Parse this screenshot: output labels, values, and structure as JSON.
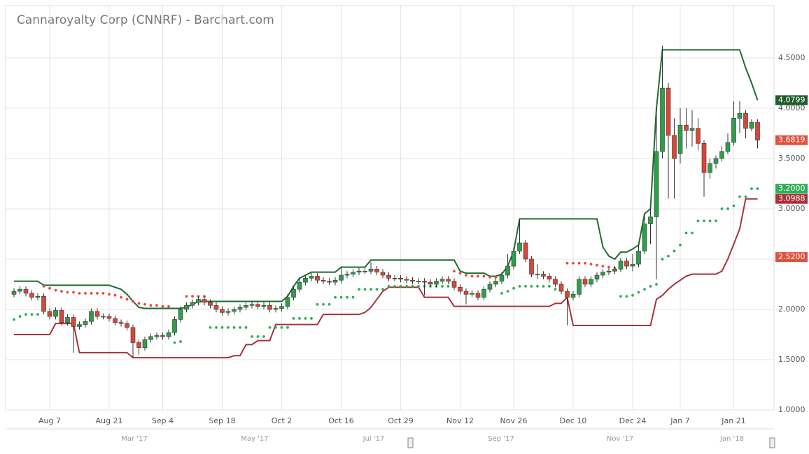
{
  "chart_data": {
    "type": "candlestick",
    "title": "Cannaroyalty Corp (CNNRF) - Barchart.com",
    "categories": [
      null,
      null,
      null,
      null,
      null,
      null,
      "Aug 7",
      null,
      null,
      null,
      null,
      null,
      null,
      null,
      null,
      null,
      "Aug 21",
      null,
      null,
      null,
      null,
      null,
      null,
      null,
      null,
      "Sep 4",
      null,
      null,
      null,
      null,
      null,
      null,
      null,
      null,
      null,
      "Sep 18",
      null,
      null,
      null,
      null,
      null,
      null,
      null,
      null,
      null,
      "Oct 2",
      null,
      null,
      null,
      null,
      null,
      null,
      null,
      null,
      null,
      "Oct 16",
      null,
      null,
      null,
      null,
      null,
      null,
      null,
      null,
      null,
      "Oct 29",
      null,
      null,
      null,
      null,
      null,
      null,
      null,
      null,
      null,
      "Nov 12",
      null,
      null,
      null,
      null,
      null,
      null,
      null,
      null,
      "Nov 26",
      null,
      null,
      null,
      null,
      null,
      null,
      null,
      null,
      null,
      "Dec 10",
      null,
      null,
      null,
      null,
      null,
      null,
      null,
      null,
      null,
      "Dec 24",
      null,
      null,
      null,
      null,
      null,
      null,
      null,
      "Jan 7",
      null,
      null,
      null,
      null,
      null,
      null,
      null,
      null,
      "Jan 21",
      null,
      null,
      null,
      null
    ],
    "open": [
      2.15,
      2.18,
      2.2,
      2.16,
      2.12,
      2.13,
      1.98,
      1.93,
      1.99,
      1.87,
      1.92,
      1.83,
      1.85,
      1.88,
      1.98,
      1.93,
      1.93,
      1.91,
      1.87,
      1.86,
      1.82,
      1.67,
      1.62,
      1.7,
      1.73,
      1.74,
      1.73,
      1.77,
      1.9,
      2.0,
      2.04,
      2.07,
      2.1,
      2.07,
      2.04,
      2.0,
      1.97,
      1.98,
      2.0,
      2.02,
      2.04,
      2.05,
      2.03,
      2.04,
      2.0,
      2.01,
      2.03,
      2.12,
      2.2,
      2.27,
      2.31,
      2.33,
      2.29,
      2.28,
      2.27,
      2.29,
      2.34,
      2.35,
      2.37,
      2.38,
      2.38,
      2.4,
      2.37,
      2.34,
      2.31,
      2.31,
      2.3,
      2.29,
      2.28,
      2.28,
      2.27,
      2.25,
      2.28,
      2.3,
      2.28,
      2.22,
      2.18,
      2.15,
      2.16,
      2.12,
      2.2,
      2.25,
      2.28,
      2.34,
      2.43,
      2.58,
      2.66,
      2.5,
      2.35,
      2.35,
      2.33,
      2.3,
      2.25,
      2.18,
      2.12,
      2.15,
      2.3,
      2.25,
      2.3,
      2.34,
      2.37,
      2.38,
      2.4,
      2.48,
      2.43,
      2.45,
      2.58,
      2.85,
      2.92,
      3.57,
      4.2,
      3.73,
      3.55,
      3.83,
      3.78,
      3.8,
      3.65,
      3.36,
      3.45,
      3.5,
      3.57,
      3.66,
      3.9,
      3.95,
      3.8,
      3.86
    ],
    "high": [
      2.21,
      2.23,
      2.23,
      2.19,
      2.16,
      2.16,
      2.01,
      2.02,
      2.02,
      1.95,
      1.95,
      1.88,
      1.91,
      2.01,
      2.01,
      1.96,
      1.96,
      1.94,
      1.9,
      1.89,
      1.85,
      1.7,
      1.73,
      1.76,
      1.77,
      1.77,
      1.8,
      1.93,
      2.03,
      2.07,
      2.1,
      2.13,
      2.13,
      2.1,
      2.07,
      2.03,
      2.01,
      2.03,
      2.05,
      2.07,
      2.08,
      2.08,
      2.07,
      2.07,
      2.04,
      2.06,
      2.15,
      2.23,
      2.3,
      2.34,
      2.36,
      2.36,
      2.32,
      2.31,
      2.32,
      2.42,
      2.38,
      2.4,
      2.41,
      2.41,
      2.47,
      2.43,
      2.4,
      2.37,
      2.34,
      2.34,
      2.33,
      2.32,
      2.31,
      2.31,
      2.3,
      2.31,
      2.33,
      2.33,
      2.31,
      2.25,
      2.21,
      2.19,
      2.19,
      2.23,
      2.28,
      2.31,
      2.37,
      2.55,
      2.61,
      2.9,
      2.69,
      2.53,
      2.45,
      2.38,
      2.36,
      2.33,
      2.28,
      2.21,
      2.18,
      2.33,
      2.33,
      2.33,
      2.37,
      2.4,
      2.41,
      2.43,
      2.51,
      2.51,
      2.55,
      2.64,
      2.95,
      3.0,
      4.0,
      4.62,
      4.25,
      3.9,
      4.0,
      4.0,
      3.98,
      3.9,
      3.68,
      3.5,
      3.53,
      3.62,
      3.75,
      4.07,
      4.07,
      3.98,
      3.89,
      3.89
    ],
    "low": [
      2.12,
      2.15,
      2.13,
      2.09,
      2.09,
      1.95,
      1.9,
      1.9,
      1.84,
      1.84,
      1.57,
      1.8,
      1.82,
      1.85,
      1.9,
      1.9,
      1.88,
      1.84,
      1.83,
      1.79,
      1.52,
      1.55,
      1.59,
      1.67,
      1.7,
      1.7,
      1.7,
      1.74,
      1.87,
      1.97,
      2.01,
      2.04,
      2.04,
      2.01,
      1.97,
      1.94,
      1.94,
      1.95,
      1.97,
      1.99,
      2.01,
      2.0,
      2.0,
      1.97,
      1.97,
      1.98,
      2.0,
      2.09,
      2.17,
      2.24,
      2.28,
      2.26,
      2.25,
      2.24,
      2.24,
      2.26,
      2.31,
      2.32,
      2.34,
      2.35,
      2.35,
      2.34,
      2.31,
      2.28,
      2.28,
      2.27,
      2.26,
      2.25,
      2.25,
      2.14,
      2.22,
      2.22,
      2.25,
      2.25,
      2.19,
      2.15,
      2.05,
      2.12,
      2.09,
      2.09,
      2.17,
      2.22,
      2.25,
      2.31,
      2.4,
      2.55,
      2.47,
      2.32,
      2.3,
      2.3,
      2.27,
      2.22,
      2.15,
      1.84,
      2.09,
      2.12,
      2.22,
      2.22,
      2.27,
      2.31,
      2.34,
      2.35,
      2.37,
      2.4,
      2.38,
      2.42,
      2.55,
      2.65,
      2.3,
      3.5,
      3.1,
      3.1,
      3.45,
      3.6,
      3.62,
      3.58,
      3.12,
      3.3,
      3.4,
      3.47,
      3.54,
      3.63,
      3.75,
      3.7,
      3.77,
      3.6
    ],
    "close": [
      2.18,
      2.2,
      2.16,
      2.12,
      2.13,
      1.98,
      1.93,
      1.99,
      1.87,
      1.92,
      1.83,
      1.85,
      1.88,
      1.98,
      1.93,
      1.93,
      1.91,
      1.87,
      1.86,
      1.82,
      1.67,
      1.62,
      1.7,
      1.73,
      1.74,
      1.73,
      1.77,
      1.9,
      2.0,
      2.04,
      2.07,
      2.1,
      2.07,
      2.04,
      2.0,
      1.97,
      1.98,
      2.0,
      2.02,
      2.04,
      2.05,
      2.03,
      2.04,
      2.0,
      2.01,
      2.03,
      2.12,
      2.2,
      2.27,
      2.31,
      2.33,
      2.29,
      2.28,
      2.27,
      2.29,
      2.34,
      2.35,
      2.37,
      2.38,
      2.38,
      2.4,
      2.37,
      2.34,
      2.31,
      2.31,
      2.3,
      2.29,
      2.28,
      2.28,
      2.27,
      2.25,
      2.28,
      2.3,
      2.28,
      2.22,
      2.18,
      2.15,
      2.16,
      2.12,
      2.2,
      2.25,
      2.28,
      2.34,
      2.43,
      2.58,
      2.66,
      2.5,
      2.35,
      2.35,
      2.33,
      2.3,
      2.25,
      2.18,
      2.12,
      2.15,
      2.3,
      2.25,
      2.3,
      2.34,
      2.37,
      2.38,
      2.4,
      2.48,
      2.43,
      2.45,
      2.58,
      2.85,
      2.92,
      3.57,
      4.2,
      3.73,
      3.5,
      3.83,
      3.78,
      3.8,
      3.65,
      3.36,
      3.45,
      3.5,
      3.57,
      3.66,
      3.9,
      3.95,
      3.8,
      3.86,
      3.6819
    ],
    "up_color": "#2e9e4a",
    "down_color": "#d9463a",
    "upper_channel": {
      "color": "#1f6b2e",
      "values": [
        2.28,
        2.28,
        2.28,
        2.28,
        2.28,
        2.24,
        2.24,
        2.24,
        2.24,
        2.24,
        2.24,
        2.24,
        2.24,
        2.24,
        2.24,
        2.24,
        2.24,
        2.22,
        2.2,
        2.15,
        2.08,
        2.02,
        2.01,
        2.01,
        2.01,
        2.01,
        2.01,
        2.01,
        2.01,
        2.02,
        2.05,
        2.08,
        2.08,
        2.08,
        2.08,
        2.08,
        2.08,
        2.08,
        2.08,
        2.08,
        2.08,
        2.08,
        2.08,
        2.08,
        2.08,
        2.08,
        2.13,
        2.23,
        2.31,
        2.34,
        2.37,
        2.37,
        2.37,
        2.37,
        2.37,
        2.42,
        2.42,
        2.42,
        2.42,
        2.42,
        2.49,
        2.49,
        2.49,
        2.49,
        2.49,
        2.49,
        2.49,
        2.49,
        2.49,
        2.49,
        2.49,
        2.49,
        2.49,
        2.49,
        2.49,
        2.38,
        2.36,
        2.36,
        2.36,
        2.36,
        2.33,
        2.33,
        2.35,
        2.43,
        2.58,
        2.9,
        2.9,
        2.9,
        2.9,
        2.9,
        2.9,
        2.9,
        2.9,
        2.9,
        2.9,
        2.9,
        2.9,
        2.9,
        2.9,
        2.62,
        2.53,
        2.5,
        2.57,
        2.57,
        2.6,
        2.64,
        2.95,
        3.0,
        4.0,
        4.58,
        4.58,
        4.58,
        4.58,
        4.58,
        4.58,
        4.58,
        4.58,
        4.58,
        4.58,
        4.58,
        4.58,
        4.58,
        4.58,
        4.4,
        4.25,
        4.0799
      ]
    },
    "lower_channel": {
      "color": "#a8323a",
      "values": [
        1.75,
        1.75,
        1.75,
        1.75,
        1.75,
        1.75,
        1.75,
        1.86,
        1.86,
        1.86,
        1.86,
        1.57,
        1.57,
        1.57,
        1.57,
        1.57,
        1.57,
        1.57,
        1.57,
        1.57,
        1.52,
        1.52,
        1.52,
        1.52,
        1.52,
        1.52,
        1.52,
        1.52,
        1.52,
        1.52,
        1.52,
        1.52,
        1.52,
        1.52,
        1.52,
        1.52,
        1.52,
        1.54,
        1.54,
        1.65,
        1.65,
        1.69,
        1.69,
        1.69,
        1.85,
        1.85,
        1.85,
        1.85,
        1.85,
        1.85,
        1.85,
        1.85,
        1.95,
        1.95,
        1.95,
        1.95,
        1.95,
        1.95,
        1.95,
        1.97,
        2.02,
        2.1,
        2.18,
        2.22,
        2.22,
        2.22,
        2.22,
        2.22,
        2.22,
        2.12,
        2.12,
        2.12,
        2.12,
        2.12,
        2.03,
        2.03,
        2.03,
        2.03,
        2.03,
        2.03,
        2.03,
        2.03,
        2.03,
        2.03,
        2.03,
        2.03,
        2.03,
        2.03,
        2.03,
        2.03,
        2.03,
        2.06,
        2.06,
        2.12,
        1.84,
        1.84,
        1.84,
        1.84,
        1.84,
        1.84,
        1.84,
        1.84,
        1.84,
        1.84,
        1.84,
        1.84,
        1.84,
        1.84,
        2.1,
        2.14,
        2.2,
        2.25,
        2.29,
        2.33,
        2.35,
        2.35,
        2.35,
        2.35,
        2.35,
        2.38,
        2.5,
        2.65,
        2.8,
        3.0988,
        3.0988,
        3.0988
      ]
    },
    "sar": {
      "above_color": "#ea4a3c",
      "below_color": "#2fae5a",
      "values": [
        1.9,
        1.93,
        1.95,
        1.95,
        1.95,
        2.23,
        2.21,
        2.19,
        2.18,
        2.17,
        2.17,
        2.16,
        2.16,
        2.16,
        2.16,
        2.16,
        2.15,
        2.14,
        2.12,
        2.1,
        2.08,
        2.06,
        2.05,
        2.04,
        2.04,
        2.03,
        2.03,
        1.67,
        1.68,
        2.13,
        2.13,
        2.13,
        2.13,
        1.82,
        1.82,
        1.82,
        1.82,
        1.82,
        1.82,
        1.82,
        1.73,
        1.73,
        1.73,
        1.82,
        1.82,
        1.82,
        1.82,
        1.91,
        1.91,
        1.91,
        1.91,
        2.05,
        2.05,
        2.05,
        2.12,
        2.12,
        2.12,
        2.12,
        2.2,
        2.2,
        2.2,
        2.2,
        2.2,
        2.23,
        2.23,
        2.23,
        2.23,
        2.23,
        2.23,
        2.23,
        2.23,
        2.23,
        2.23,
        2.23,
        2.38,
        2.36,
        2.34,
        2.33,
        2.33,
        2.33,
        2.32,
        2.32,
        2.16,
        2.18,
        2.21,
        2.23,
        2.23,
        2.23,
        2.23,
        2.23,
        2.23,
        2.2,
        2.2,
        2.46,
        2.46,
        2.46,
        2.46,
        2.45,
        2.44,
        2.43,
        2.42,
        2.41,
        2.13,
        2.13,
        2.14,
        2.17,
        2.2,
        2.23,
        2.25,
        2.5,
        2.53,
        2.58,
        2.64,
        2.76,
        2.76,
        2.88,
        2.88,
        2.88,
        2.88,
        3.0,
        3.0,
        3.03,
        3.12,
        3.12,
        3.2,
        3.2
      ]
    },
    "ylim": [
      1,
      5.02
    ],
    "yticks": [
      {
        "value": 1,
        "label": "1.0000"
      },
      {
        "value": 1.5,
        "label": "1.5000"
      },
      {
        "value": 2,
        "label": "2.0000"
      },
      {
        "value": 2.5,
        "label": "2.5000"
      },
      {
        "value": 3,
        "label": "3.0000"
      },
      {
        "value": 3.5,
        "label": "3.5000"
      },
      {
        "value": 4,
        "label": "4.0000"
      },
      {
        "value": 4.5,
        "label": "4.5000"
      }
    ],
    "grid": true,
    "price_labels": [
      {
        "value": 4.0799,
        "label": "4.0799",
        "color": "#1f5e2c"
      },
      {
        "value": 3.6819,
        "label": "3.6819",
        "color": "#e0513e"
      },
      {
        "value": 3.2,
        "label": "3.2000",
        "color": "#2fae5a"
      },
      {
        "value": 3.0988,
        "label": "3.0988",
        "color": "#a8323a"
      },
      {
        "value": 2.52,
        "label": "2.5200",
        "color": "#e0513e"
      }
    ],
    "navigator_labels": [
      "Mar '17",
      "May '17",
      "Jul '17",
      "Sep '17",
      "Nov '17",
      "Jan '18"
    ]
  }
}
